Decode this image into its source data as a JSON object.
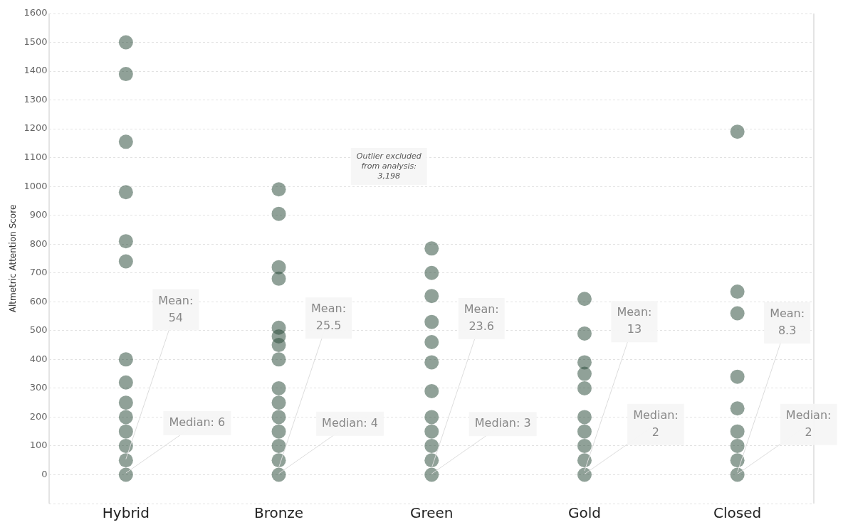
{
  "chart_data": {
    "type": "scatter",
    "ylabel": "Altmetric Attention Score",
    "categories": [
      "Hybrid",
      "Bronze",
      "Green",
      "Gold",
      "Closed"
    ],
    "series": [
      {
        "color": "#2e4f3e",
        "x": [
          "Hybrid",
          "Hybrid",
          "Hybrid",
          "Hybrid",
          "Hybrid",
          "Hybrid",
          "Hybrid",
          "Hybrid",
          "Hybrid",
          "Hybrid",
          "Hybrid",
          "Hybrid",
          "Hybrid",
          "Hybrid"
        ],
        "values": [
          1500,
          1390,
          1155,
          980,
          810,
          740,
          400,
          320,
          250,
          200,
          150,
          100,
          50,
          0
        ]
      },
      {
        "color": "#2e4f3e",
        "x": [
          "Bronze",
          "Bronze",
          "Bronze",
          "Bronze",
          "Bronze",
          "Bronze",
          "Bronze",
          "Bronze",
          "Bronze",
          "Bronze",
          "Bronze",
          "Bronze",
          "Bronze",
          "Bronze",
          "Bronze"
        ],
        "values": [
          990,
          905,
          720,
          680,
          510,
          480,
          450,
          400,
          300,
          250,
          200,
          150,
          100,
          50,
          0
        ]
      },
      {
        "color": "#2e4f3e",
        "x": [
          "Green",
          "Green",
          "Green",
          "Green",
          "Green",
          "Green",
          "Green",
          "Green",
          "Green",
          "Green",
          "Green",
          "Green"
        ],
        "values": [
          785,
          700,
          620,
          530,
          460,
          390,
          290,
          200,
          150,
          100,
          50,
          0
        ]
      },
      {
        "color": "#2e4f3e",
        "x": [
          "Gold",
          "Gold",
          "Gold",
          "Gold",
          "Gold",
          "Gold",
          "Gold",
          "Gold",
          "Gold",
          "Gold"
        ],
        "values": [
          610,
          490,
          390,
          350,
          300,
          200,
          150,
          100,
          50,
          0
        ]
      },
      {
        "color": "#2e4f3e",
        "x": [
          "Closed",
          "Closed",
          "Closed",
          "Closed",
          "Closed",
          "Closed",
          "Closed",
          "Closed",
          "Closed"
        ],
        "values": [
          1190,
          635,
          560,
          340,
          230,
          150,
          100,
          50,
          0
        ]
      }
    ],
    "ylim": [
      -100,
      1600
    ],
    "yticks": [
      {
        "value": -100,
        "label": null
      },
      0,
      100,
      200,
      300,
      400,
      500,
      600,
      700,
      800,
      900,
      1000,
      1100,
      1200,
      1300,
      1400,
      1500,
      1600
    ],
    "grid": true,
    "legend": false,
    "marker": "circle",
    "annotations": [
      {
        "text": "Mean:\n54",
        "x": "Hybrid",
        "y": 54
      },
      {
        "text": "Median: 6",
        "x": "Hybrid",
        "y": 6
      },
      {
        "text": "Mean:\n25.5",
        "x": "Bronze",
        "y": 25.5
      },
      {
        "text": "Median: 4",
        "x": "Bronze",
        "y": 4
      },
      {
        "text": "Mean:\n23.6",
        "x": "Green",
        "y": 23.6
      },
      {
        "text": "Median: 3",
        "x": "Green",
        "y": 3
      },
      {
        "text": "Mean:\n13",
        "x": "Gold",
        "y": 13
      },
      {
        "text": "Median:\n2",
        "x": "Gold",
        "y": 2
      },
      {
        "text": "Mean:\n8.3",
        "x": "Closed",
        "y": 8.3
      },
      {
        "text": "Median:\n2",
        "x": "Closed",
        "y": 2
      },
      "Outlier excluded\nfrom analysis:\n3,198"
    ]
  }
}
